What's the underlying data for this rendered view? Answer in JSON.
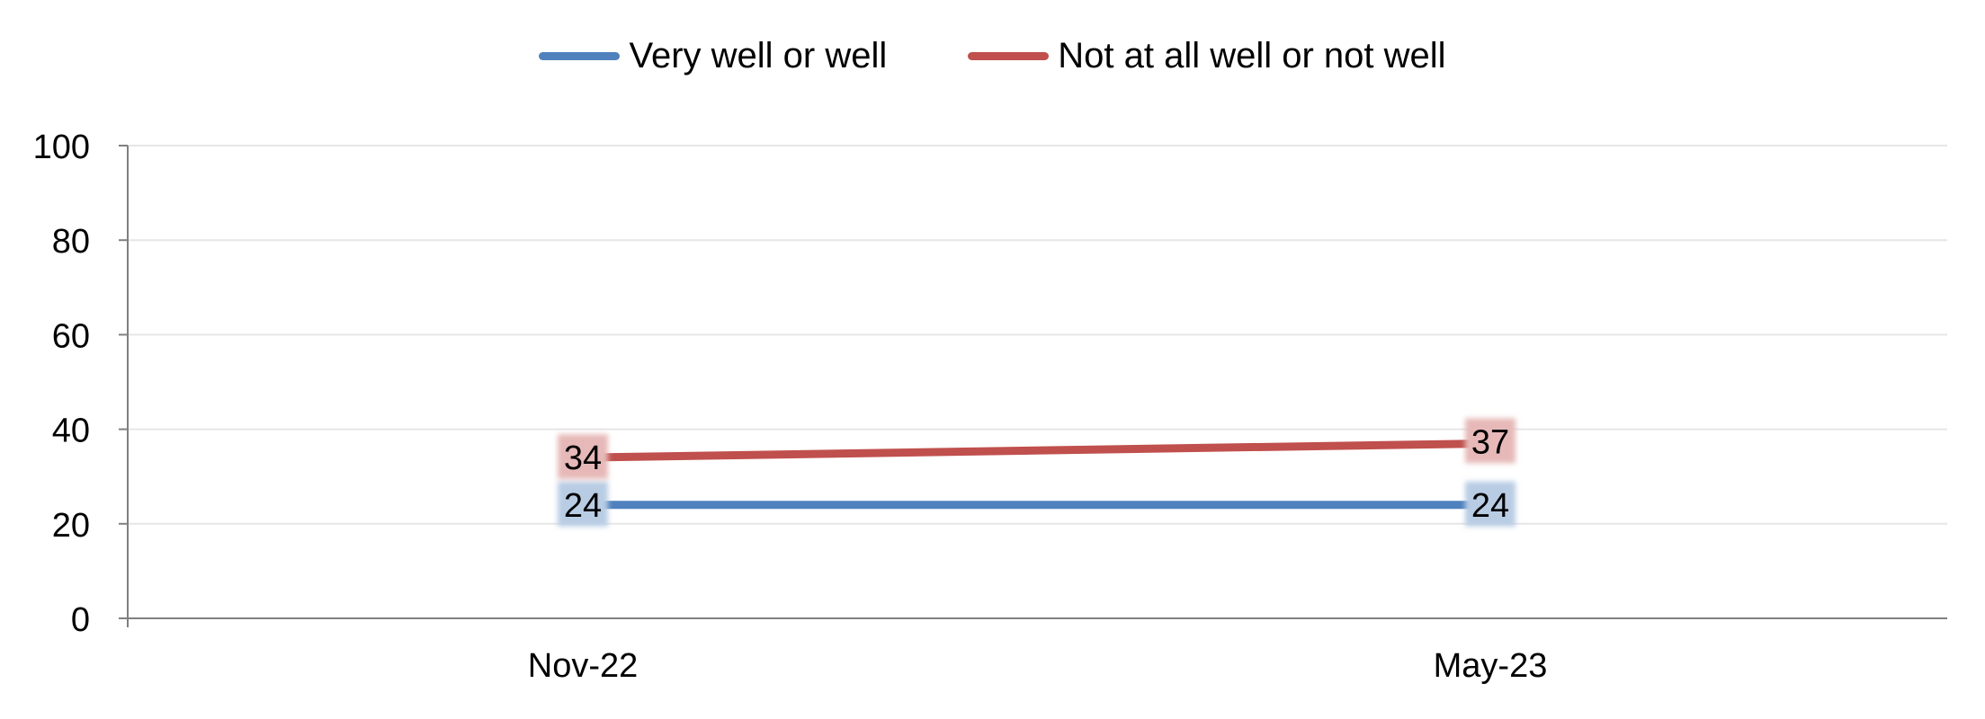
{
  "chart_data": {
    "type": "line",
    "categories": [
      "Nov-22",
      "May-23"
    ],
    "series": [
      {
        "name": "Very well or well",
        "values": [
          24,
          24
        ],
        "color": "#4F81BD",
        "label_bg": "#B8CCE4"
      },
      {
        "name": "Not at all well or not well",
        "values": [
          34,
          37
        ],
        "color": "#C0504D",
        "label_bg": "#E6B9B8"
      }
    ],
    "ylim": [
      0,
      100
    ],
    "yticks": [
      "0",
      "20",
      "40",
      "60",
      "80",
      "100"
    ],
    "grid": true,
    "legend_position": "top-center"
  }
}
